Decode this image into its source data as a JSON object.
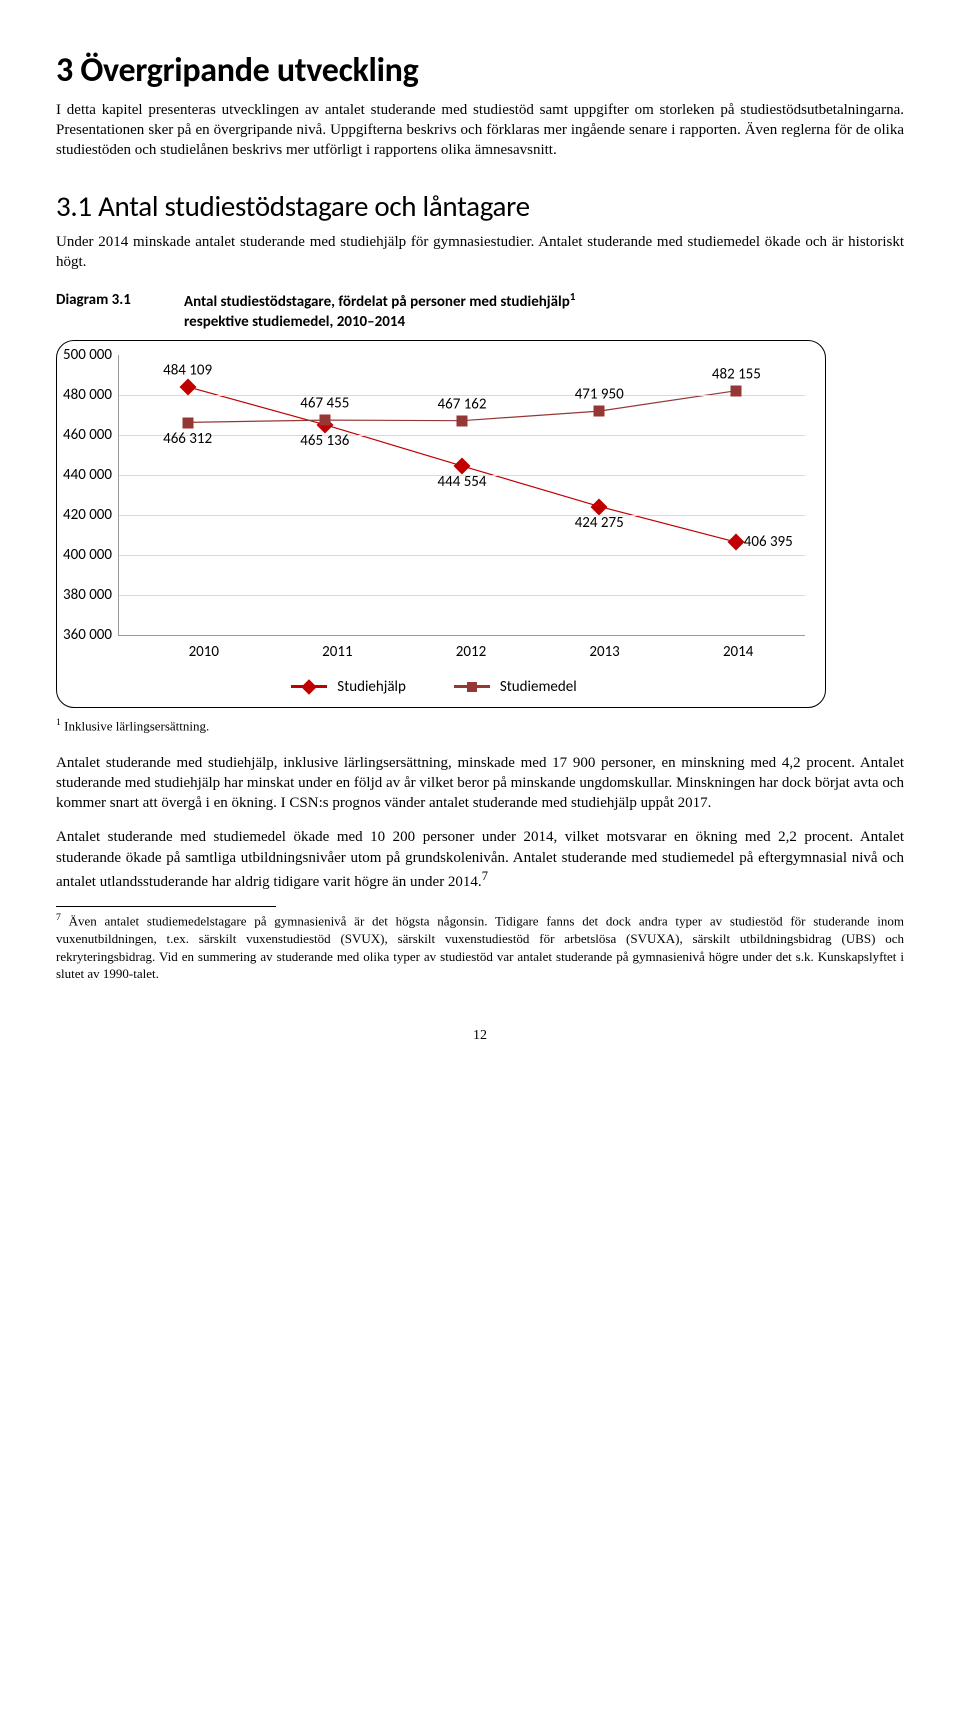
{
  "h1": "3 Övergripande utveckling",
  "p1": "I detta kapitel presenteras utvecklingen av antalet studerande med studiestöd samt uppgifter om storleken på studiestödsutbetalningarna. Presentationen sker på en övergripande nivå. Uppgifterna beskrivs och förklaras mer ingående senare i rapporten. Även reglerna för de olika studiestöden och studielånen beskrivs mer utförligt i rapportens olika ämnesavsnitt.",
  "h2": "3.1    Antal studiestödstagare och låntagare",
  "p2": "Under 2014 minskade antalet studerande med studiehjälp för gymnasiestudier. Antalet studerande med studiemedel ökade och är historiskt högt.",
  "diagram_no": "Diagram 3.1",
  "diagram_title_a": "Antal studiestödstagare, fördelat på personer med studiehjälp",
  "diagram_title_b": "respektive studiemedel, 2010–2014",
  "chart": {
    "ylim": [
      360000,
      500000
    ],
    "ytick_step": 20000,
    "yticks": [
      "500 000",
      "480 000",
      "460 000",
      "440 000",
      "420 000",
      "400 000",
      "380 000",
      "360 000"
    ],
    "years": [
      "2010",
      "2011",
      "2012",
      "2013",
      "2014"
    ],
    "series": [
      {
        "name": "Studiehjälp",
        "marker": "diamond",
        "color": "#c00000",
        "values": [
          484109,
          465136,
          444554,
          424275,
          406395
        ],
        "labels": [
          "484 109",
          "465 136",
          "444 554",
          "424 275",
          "406 395"
        ],
        "label_pos": [
          "above",
          "below",
          "below",
          "below",
          "right"
        ]
      },
      {
        "name": "Studiemedel",
        "marker": "square",
        "color": "#953735",
        "values": [
          466312,
          467455,
          467162,
          471950,
          482155
        ],
        "labels": [
          "466 312",
          "467 455",
          "467 162",
          "471 950",
          "482 155"
        ],
        "label_pos": [
          "below",
          "above",
          "above",
          "above",
          "above"
        ]
      }
    ]
  },
  "chart_note": "Inklusive lärlingsersättning.",
  "p3": "Antalet studerande med studiehjälp, inklusive lärlingsersättning, minskade med 17 900 personer, en minskning med 4,2 procent. Antalet studerande med studiehjälp har minskat under en följd av år vilket beror på minskande ungdomskullar. Minskningen har dock börjat avta och kommer snart att övergå i en ökning. I CSN:s prognos vänder antalet studerande med studiehjälp uppåt 2017.",
  "p4_a": "Antalet studerande med studiemedel ökade med 10 200 personer under 2014, vilket motsvarar en ökning med 2,2 procent. Antalet studerande ökade på samtliga utbildningsnivåer utom på grundskolenivån. Antalet studerande med studiemedel på eftergymnasial nivå och antalet utlandsstuderande har aldrig tidigare varit högre än under 2014.",
  "fn7": "Även antalet studiemedelstagare på gymnasienivå är det högsta någonsin. Tidigare fanns det dock andra typer av studiestöd för studerande inom vuxenutbildningen, t.ex. särskilt vuxenstudiestöd (SVUX), särskilt vuxenstudiestöd för arbetslösa (SVUXA), särskilt utbildningsbidrag (UBS) och rekryteringsbidrag. Vid en summering av studerande med olika typer av studiestöd var antalet studerande på gymnasienivå högre under det s.k. Kunskapslyftet i slutet av 1990-talet.",
  "page": "12"
}
